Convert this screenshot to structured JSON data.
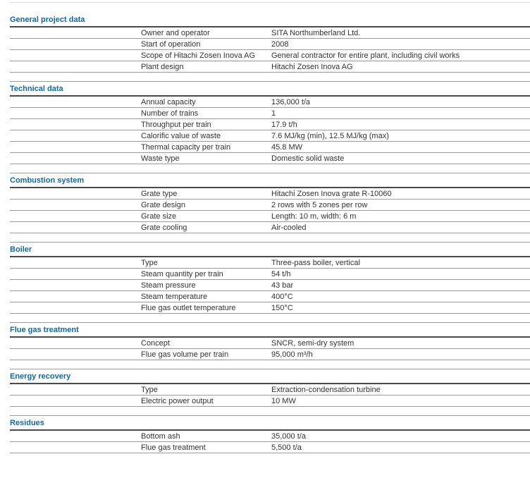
{
  "page": {
    "accent_color": "#0d68ae",
    "rule_color": "#9b9b9b",
    "sections": [
      {
        "title": "General project data",
        "rows": [
          {
            "label": "Owner and operator",
            "value": "SITA Northumberland Ltd."
          },
          {
            "label": "Start of operation",
            "value": "2008"
          },
          {
            "label": "Scope of Hitachi Zosen Inova AG",
            "value": "General contractor for entire plant, including civil works"
          },
          {
            "label": "Plant design",
            "value": "Hitachi Zosen Inova AG"
          }
        ]
      },
      {
        "title": "Technical data",
        "rows": [
          {
            "label": "Annual capacity",
            "value": "136,000 t/a"
          },
          {
            "label": "Number of trains",
            "value": "1"
          },
          {
            "label": "Throughput per train",
            "value": "17.9 t/h"
          },
          {
            "label": "Calorific value of waste",
            "value": "7.6 MJ/kg (min), 12.5 MJ/kg (max)"
          },
          {
            "label": "Thermal capacity per train",
            "value": "45.8 MW"
          },
          {
            "label": "Waste type",
            "value": "Domestic solid waste"
          }
        ]
      },
      {
        "title": "Combustion system",
        "rows": [
          {
            "label": "Grate type",
            "value": "Hitachi Zosen Inova grate R-10060"
          },
          {
            "label": "Grate design",
            "value": "2 rows with 5 zones per row"
          },
          {
            "label": "Grate size",
            "value": "Length: 10 m, width: 6 m"
          },
          {
            "label": "Grate cooling",
            "value": "Air-cooled"
          }
        ]
      },
      {
        "title": "Boiler",
        "rows": [
          {
            "label": "Type",
            "value": "Three-pass boiler, vertical"
          },
          {
            "label": "Steam quantity per train",
            "value": "54 t/h"
          },
          {
            "label": "Steam pressure",
            "value": "43 bar"
          },
          {
            "label": "Steam temperature",
            "value": "400°C"
          },
          {
            "label": "Flue gas outlet temperature",
            "value": "150°C"
          }
        ]
      },
      {
        "title": "Flue gas treatment",
        "rows": [
          {
            "label": "Concept",
            "value": "SNCR, semi-dry system"
          },
          {
            "label": "Flue gas volume per train",
            "value": "95,000 m³/h"
          }
        ]
      },
      {
        "title": "Energy recovery",
        "rows": [
          {
            "label": "Type",
            "value": "Extraction-condensation turbine"
          },
          {
            "label": "Electric power output",
            "value": "10 MW"
          }
        ]
      },
      {
        "title": "Residues",
        "rows": [
          {
            "label": "Bottom ash",
            "value": "35,000 t/a"
          },
          {
            "label": "Flue gas treatment",
            "value": "5,500 t/a"
          }
        ]
      }
    ]
  }
}
